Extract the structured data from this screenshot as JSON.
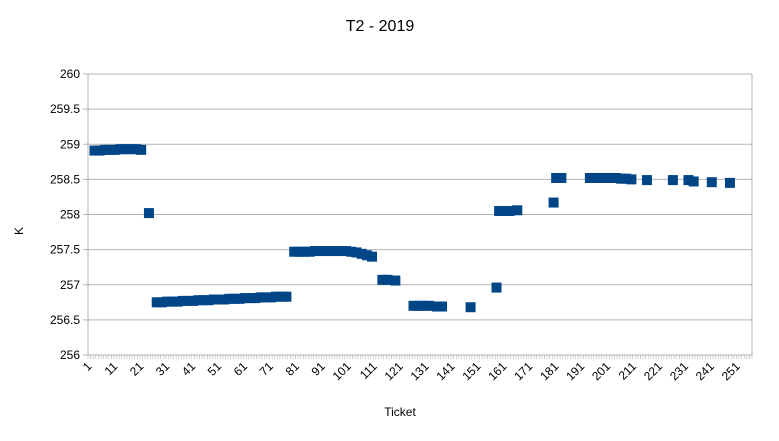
{
  "chart_data": {
    "type": "scatter",
    "title": "T2 - 2019",
    "xlabel": "Ticket",
    "ylabel": "K",
    "ylim": [
      256,
      260
    ],
    "yticks": [
      256,
      256.5,
      257,
      257.5,
      258,
      258.5,
      259,
      259.5,
      260
    ],
    "ytick_labels": [
      "256",
      "256.5",
      "257",
      "257.5",
      "258",
      "258.5",
      "259",
      "259.5",
      "260"
    ],
    "xlim": [
      1,
      256
    ],
    "xtick_labels": [
      "1",
      "11",
      "21",
      "31",
      "41",
      "51",
      "61",
      "71",
      "81",
      "91",
      "101",
      "111",
      "121",
      "131",
      "141",
      "151",
      "161",
      "171",
      "181",
      "191",
      "201",
      "211",
      "221",
      "231",
      "241",
      "251"
    ],
    "grid": true,
    "legend": "none",
    "marker_color": "#004586",
    "series": [
      {
        "name": "T2",
        "points": [
          [
            3,
            258.91
          ],
          [
            5,
            258.91
          ],
          [
            7,
            258.92
          ],
          [
            9,
            258.92
          ],
          [
            11,
            258.92
          ],
          [
            13,
            258.93
          ],
          [
            15,
            258.93
          ],
          [
            17,
            258.93
          ],
          [
            19,
            258.93
          ],
          [
            21,
            258.92
          ],
          [
            24,
            258.02
          ],
          [
            27,
            256.75
          ],
          [
            29,
            256.75
          ],
          [
            31,
            256.76
          ],
          [
            33,
            256.76
          ],
          [
            35,
            256.76
          ],
          [
            37,
            256.77
          ],
          [
            39,
            256.77
          ],
          [
            41,
            256.77
          ],
          [
            43,
            256.78
          ],
          [
            45,
            256.78
          ],
          [
            47,
            256.78
          ],
          [
            49,
            256.79
          ],
          [
            51,
            256.79
          ],
          [
            53,
            256.79
          ],
          [
            55,
            256.8
          ],
          [
            57,
            256.8
          ],
          [
            59,
            256.8
          ],
          [
            61,
            256.81
          ],
          [
            63,
            256.81
          ],
          [
            65,
            256.81
          ],
          [
            67,
            256.82
          ],
          [
            69,
            256.82
          ],
          [
            71,
            256.82
          ],
          [
            73,
            256.83
          ],
          [
            75,
            256.83
          ],
          [
            77,
            256.83
          ],
          [
            80,
            257.47
          ],
          [
            82,
            257.47
          ],
          [
            84,
            257.47
          ],
          [
            86,
            257.47
          ],
          [
            88,
            257.48
          ],
          [
            90,
            257.48
          ],
          [
            92,
            257.48
          ],
          [
            94,
            257.48
          ],
          [
            96,
            257.48
          ],
          [
            98,
            257.48
          ],
          [
            100,
            257.48
          ],
          [
            102,
            257.47
          ],
          [
            104,
            257.46
          ],
          [
            106,
            257.44
          ],
          [
            108,
            257.42
          ],
          [
            110,
            257.4
          ],
          [
            114,
            257.07
          ],
          [
            116,
            257.07
          ],
          [
            119,
            257.06
          ],
          [
            126,
            256.7
          ],
          [
            128,
            256.7
          ],
          [
            130,
            256.7
          ],
          [
            132,
            256.7
          ],
          [
            135,
            256.69
          ],
          [
            137,
            256.69
          ],
          [
            148,
            256.68
          ],
          [
            158,
            256.96
          ],
          [
            159,
            258.05
          ],
          [
            161,
            258.05
          ],
          [
            163,
            258.05
          ],
          [
            166,
            258.06
          ],
          [
            180,
            258.17
          ],
          [
            181,
            258.52
          ],
          [
            183,
            258.52
          ],
          [
            194,
            258.52
          ],
          [
            196,
            258.52
          ],
          [
            198,
            258.52
          ],
          [
            200,
            258.52
          ],
          [
            202,
            258.52
          ],
          [
            204,
            258.52
          ],
          [
            206,
            258.51
          ],
          [
            208,
            258.51
          ],
          [
            210,
            258.5
          ],
          [
            216,
            258.49
          ],
          [
            226,
            258.49
          ],
          [
            232,
            258.49
          ],
          [
            234,
            258.47
          ],
          [
            241,
            258.46
          ],
          [
            248,
            258.45
          ]
        ]
      }
    ]
  }
}
